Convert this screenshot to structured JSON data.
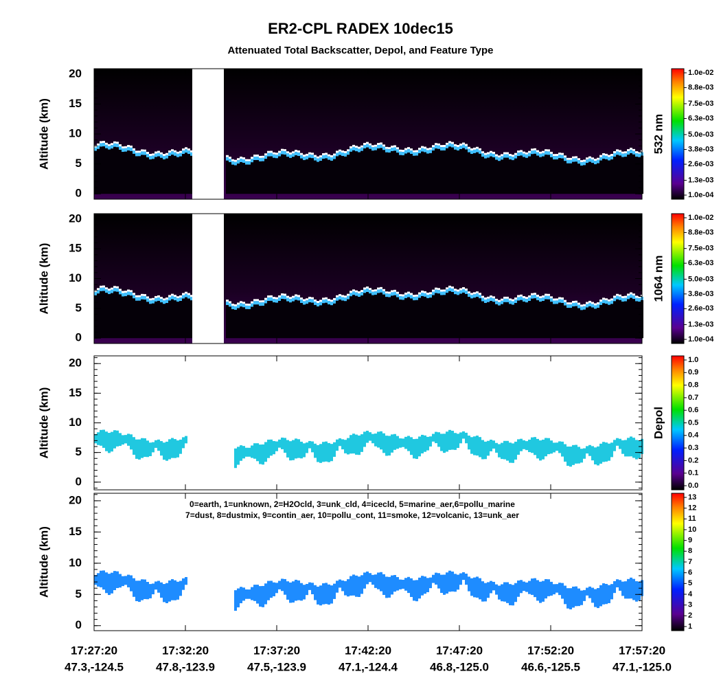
{
  "title": "ER2-CPL RADEX 10dec15",
  "subtitle": "Attenuated Total Backscatter, Depol, and Feature Type",
  "x_axis": {
    "ticks": [
      {
        "time": "17:27:20",
        "location": "47.3,-124.5"
      },
      {
        "time": "17:32:20",
        "location": "47.8,-123.9"
      },
      {
        "time": "17:37:20",
        "location": "47.5,-123.9"
      },
      {
        "time": "17:42:20",
        "location": "47.1,-124.4"
      },
      {
        "time": "17:47:20",
        "location": "46.8,-125.0"
      },
      {
        "time": "17:52:20",
        "location": "46.6,-125.5"
      },
      {
        "time": "17:57:20",
        "location": "47.1,-125.0"
      }
    ]
  },
  "chart_data": [
    {
      "type": "heatmap",
      "ylabel": "Altitude (km)",
      "ylim": [
        -0.9,
        20.9
      ],
      "yticks": [
        0,
        5,
        10,
        15,
        20
      ],
      "colorbar": {
        "label": "532 nm",
        "lim": [
          0.0001,
          0.01
        ],
        "ticks": [
          {
            "value": 0.01,
            "label": "1.0e-02"
          },
          {
            "value": 0.0088,
            "label": "8.8e-03"
          },
          {
            "value": 0.0075,
            "label": "7.5e-03"
          },
          {
            "value": 0.0063,
            "label": "6.3e-03"
          },
          {
            "value": 0.005,
            "label": "5.0e-03"
          },
          {
            "value": 0.0038,
            "label": "3.8e-03"
          },
          {
            "value": 0.0026,
            "label": "2.6e-03"
          },
          {
            "value": 0.0013,
            "label": "1.3e-03"
          },
          {
            "value": 0.0001,
            "label": "1.0e-04"
          }
        ]
      }
    },
    {
      "type": "heatmap",
      "ylabel": "Altitude (km)",
      "ylim": [
        -0.9,
        20.9
      ],
      "yticks": [
        0,
        5,
        10,
        15,
        20
      ],
      "colorbar": {
        "label": "1064 nm",
        "lim": [
          0.0001,
          0.01
        ],
        "ticks": [
          {
            "value": 0.01,
            "label": "1.0e-02"
          },
          {
            "value": 0.0088,
            "label": "8.8e-03"
          },
          {
            "value": 0.0075,
            "label": "7.5e-03"
          },
          {
            "value": 0.0063,
            "label": "6.3e-03"
          },
          {
            "value": 0.005,
            "label": "5.0e-03"
          },
          {
            "value": 0.0038,
            "label": "3.8e-03"
          },
          {
            "value": 0.0026,
            "label": "2.6e-03"
          },
          {
            "value": 0.0013,
            "label": "1.3e-03"
          },
          {
            "value": 0.0001,
            "label": "1.0e-04"
          }
        ]
      }
    },
    {
      "type": "heatmap",
      "ylabel": "Altitude (km)",
      "ylim": [
        -1.3,
        21.3
      ],
      "yticks": [
        0,
        5,
        10,
        15,
        20
      ],
      "colorbar": {
        "label": "Depol",
        "lim": [
          0,
          1
        ],
        "ticks": [
          {
            "value": 1,
            "label": "1.0"
          },
          0.9,
          0.8,
          0.7,
          0.6,
          0.5,
          0.4,
          0.3,
          0.2,
          0.1,
          {
            "value": 0,
            "label": "0.0"
          }
        ]
      }
    },
    {
      "type": "heatmap",
      "ylabel": "Altitude (km)",
      "ylim": [
        -0.8,
        21.2
      ],
      "yticks": [
        0,
        5,
        10,
        15,
        20
      ],
      "annotation": [
        "0=earth, 1=unknown, 2=H2Ocld, 3=unk_cld, 4=icecld, 5=marine_aer,6=pollu_marine",
        "7=dust, 8=dustmix, 9=contin_aer, 10=pollu_cont, 11=smoke, 12=volcanic, 13=unk_aer"
      ],
      "colorbar": {
        "lim": [
          1,
          13
        ],
        "ticks": [
          13,
          12,
          11,
          10,
          9,
          8,
          7,
          6,
          5,
          4,
          3,
          2,
          1
        ]
      }
    }
  ]
}
